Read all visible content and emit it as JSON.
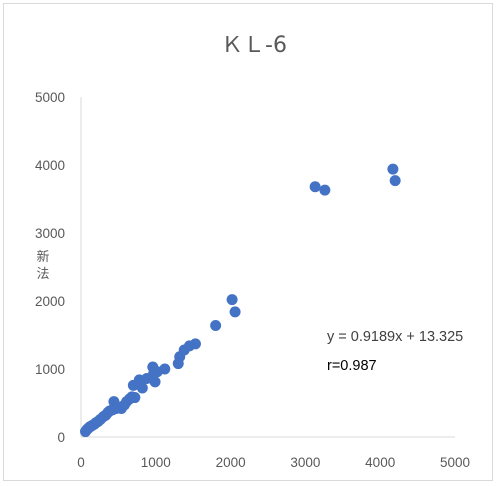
{
  "chart_data": {
    "type": "scatter",
    "title": "ＫＬ-6",
    "xlabel": "",
    "ylabel": "新法",
    "xlim": [
      0,
      5000
    ],
    "ylim": [
      0,
      5000
    ],
    "x_ticks": [
      "0",
      "1000",
      "2000",
      "3000",
      "4000",
      "5000"
    ],
    "y_ticks": [
      "0",
      "1000",
      "2000",
      "3000",
      "4000",
      "5000"
    ],
    "grid": false,
    "legend": "none",
    "marker_color": "#4472c4",
    "annotations": {
      "equation": "y = 0.9189x + 13.325",
      "r_value": "r=0.987"
    },
    "series": [
      {
        "points": [
          [
            60,
            80
          ],
          [
            80,
            110
          ],
          [
            100,
            130
          ],
          [
            120,
            150
          ],
          [
            150,
            170
          ],
          [
            180,
            190
          ],
          [
            200,
            210
          ],
          [
            230,
            230
          ],
          [
            260,
            260
          ],
          [
            300,
            300
          ],
          [
            330,
            320
          ],
          [
            360,
            360
          ],
          [
            380,
            380
          ],
          [
            420,
            400
          ],
          [
            440,
            520
          ],
          [
            470,
            420
          ],
          [
            500,
            440
          ],
          [
            540,
            420
          ],
          [
            580,
            470
          ],
          [
            610,
            520
          ],
          [
            650,
            560
          ],
          [
            680,
            590
          ],
          [
            700,
            760
          ],
          [
            720,
            580
          ],
          [
            780,
            840
          ],
          [
            820,
            720
          ],
          [
            880,
            860
          ],
          [
            960,
            1030
          ],
          [
            970,
            930
          ],
          [
            990,
            810
          ],
          [
            1020,
            960
          ],
          [
            1120,
            1000
          ],
          [
            1300,
            1080
          ],
          [
            1320,
            1180
          ],
          [
            1380,
            1280
          ],
          [
            1450,
            1340
          ],
          [
            1530,
            1370
          ],
          [
            1800,
            1640
          ],
          [
            2020,
            2020
          ],
          [
            2060,
            1840
          ],
          [
            3130,
            3680
          ],
          [
            3260,
            3630
          ],
          [
            4170,
            3940
          ],
          [
            4200,
            3770
          ]
        ]
      }
    ]
  }
}
